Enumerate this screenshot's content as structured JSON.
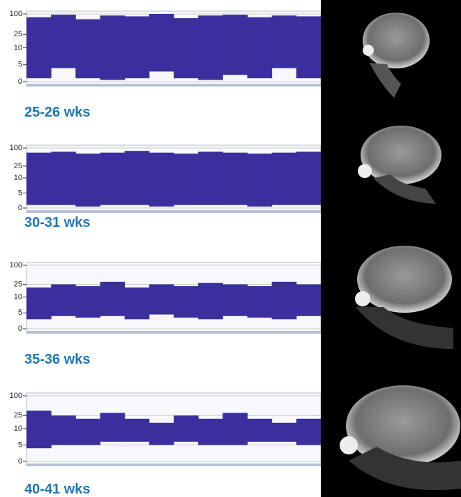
{
  "chart_data": [
    {
      "type": "range",
      "title": "25-26 wks",
      "ylim": [
        0,
        100
      ],
      "linear_below": 10,
      "yticks": [
        0,
        5,
        10,
        25,
        100
      ],
      "color": "#3b2f9e",
      "upper": [
        80,
        95,
        70,
        90,
        85,
        100,
        75,
        90,
        95,
        80,
        90,
        85
      ],
      "lower": [
        1,
        4,
        1,
        0.5,
        1,
        3,
        1,
        0.5,
        2,
        1,
        4,
        1
      ]
    },
    {
      "type": "range",
      "title": "30-31 wks",
      "ylim": [
        0,
        100
      ],
      "linear_below": 10,
      "yticks": [
        0,
        5,
        10,
        25,
        100
      ],
      "color": "#3b2f9e",
      "upper": [
        70,
        75,
        65,
        70,
        80,
        70,
        65,
        75,
        70,
        65,
        70,
        75
      ],
      "lower": [
        1,
        1,
        0.5,
        1,
        1,
        0.5,
        1,
        1,
        1,
        0.5,
        1,
        1
      ]
    },
    {
      "type": "range",
      "title": "35-36 wks",
      "ylim": [
        0,
        100
      ],
      "linear_below": 10,
      "yticks": [
        0,
        5,
        10,
        25,
        100
      ],
      "color": "#3b2f9e",
      "upper": [
        20,
        25,
        22,
        30,
        20,
        25,
        22,
        28,
        25,
        22,
        30,
        25
      ],
      "lower": [
        3,
        4,
        3.5,
        4,
        3,
        4.5,
        3.5,
        3,
        4,
        3.5,
        3,
        4
      ]
    },
    {
      "type": "range",
      "title": "40-41 wks",
      "ylim": [
        0,
        100
      ],
      "linear_below": 10,
      "yticks": [
        0,
        5,
        10,
        25,
        100
      ],
      "color": "#3b2f9e",
      "upper": [
        35,
        25,
        20,
        30,
        20,
        15,
        25,
        20,
        30,
        20,
        15,
        20
      ],
      "lower": [
        4,
        5,
        5,
        6,
        6,
        5,
        6,
        5,
        5,
        6,
        6,
        5
      ]
    }
  ]
}
